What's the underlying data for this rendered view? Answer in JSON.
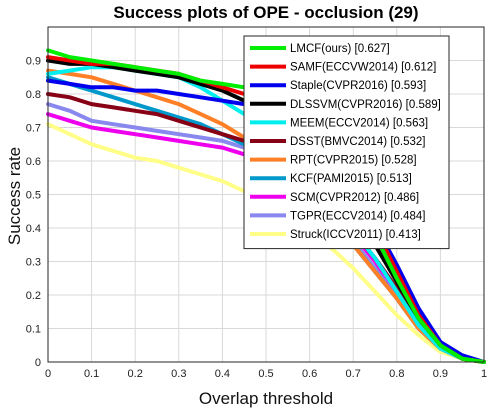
{
  "chart_data": {
    "type": "line",
    "title": "Success plots of OPE - occlusion (29)",
    "xlabel": "Overlap threshold",
    "ylabel": "Success rate",
    "xlim": [
      0,
      1
    ],
    "ylim": [
      0,
      1
    ],
    "xticks": [
      "0",
      "0.1",
      "0.2",
      "0.3",
      "0.4",
      "0.5",
      "0.6",
      "0.7",
      "0.8",
      "0.9",
      "1"
    ],
    "yticks": [
      "0",
      "0.1",
      "0.2",
      "0.3",
      "0.4",
      "0.5",
      "0.6",
      "0.7",
      "0.8",
      "0.9"
    ],
    "grid": true,
    "legend_position": "top-right",
    "x": [
      0,
      0.05,
      0.1,
      0.15,
      0.2,
      0.25,
      0.3,
      0.35,
      0.4,
      0.45,
      0.5,
      0.55,
      0.6,
      0.65,
      0.7,
      0.75,
      0.8,
      0.85,
      0.9,
      0.95,
      1
    ],
    "series": [
      {
        "name": "LMCF(ours) [0.627]",
        "color": "#00ee00",
        "values": [
          0.93,
          0.91,
          0.9,
          0.89,
          0.88,
          0.87,
          0.86,
          0.84,
          0.83,
          0.82,
          0.79,
          0.75,
          0.69,
          0.6,
          0.5,
          0.38,
          0.25,
          0.13,
          0.05,
          0.01,
          0.0
        ]
      },
      {
        "name": "SAMF(ECCVW2014) [0.612]",
        "color": "#ee0000",
        "values": [
          0.91,
          0.9,
          0.89,
          0.89,
          0.88,
          0.87,
          0.86,
          0.84,
          0.82,
          0.8,
          0.77,
          0.73,
          0.67,
          0.59,
          0.5,
          0.4,
          0.27,
          0.14,
          0.05,
          0.01,
          0.0
        ]
      },
      {
        "name": "Staple(CVPR2016) [0.593]",
        "color": "#0000ee",
        "values": [
          0.84,
          0.83,
          0.82,
          0.82,
          0.81,
          0.81,
          0.8,
          0.79,
          0.78,
          0.77,
          0.75,
          0.71,
          0.66,
          0.59,
          0.5,
          0.41,
          0.29,
          0.16,
          0.06,
          0.02,
          0.0
        ]
      },
      {
        "name": "DLSSVM(CVPR2016) [0.589]",
        "color": "#000000",
        "values": [
          0.9,
          0.89,
          0.89,
          0.88,
          0.87,
          0.86,
          0.85,
          0.83,
          0.81,
          0.78,
          0.74,
          0.69,
          0.62,
          0.53,
          0.44,
          0.35,
          0.24,
          0.13,
          0.05,
          0.01,
          0.0
        ]
      },
      {
        "name": "MEEM(ECCV2014) [0.563]",
        "color": "#00eeee",
        "values": [
          0.86,
          0.87,
          0.88,
          0.88,
          0.87,
          0.86,
          0.85,
          0.82,
          0.78,
          0.74,
          0.69,
          0.63,
          0.56,
          0.48,
          0.39,
          0.31,
          0.21,
          0.11,
          0.04,
          0.01,
          0.0
        ]
      },
      {
        "name": "DSST(BMVC2014) [0.532]",
        "color": "#880015",
        "values": [
          0.8,
          0.79,
          0.77,
          0.76,
          0.75,
          0.74,
          0.72,
          0.7,
          0.68,
          0.66,
          0.63,
          0.59,
          0.54,
          0.47,
          0.39,
          0.31,
          0.22,
          0.12,
          0.05,
          0.01,
          0.0
        ]
      },
      {
        "name": "RPT(CVPR2015) [0.528]",
        "color": "#ff7f27",
        "values": [
          0.87,
          0.86,
          0.85,
          0.83,
          0.81,
          0.79,
          0.77,
          0.74,
          0.71,
          0.67,
          0.62,
          0.56,
          0.49,
          0.42,
          0.35,
          0.27,
          0.19,
          0.1,
          0.04,
          0.01,
          0.0
        ]
      },
      {
        "name": "KCF(PAMI2015) [0.513]",
        "color": "#0099cc",
        "values": [
          0.85,
          0.83,
          0.81,
          0.79,
          0.77,
          0.75,
          0.73,
          0.71,
          0.68,
          0.65,
          0.61,
          0.56,
          0.5,
          0.43,
          0.35,
          0.27,
          0.19,
          0.1,
          0.04,
          0.01,
          0.0
        ]
      },
      {
        "name": "SCM(CVPR2012) [0.486]",
        "color": "#ee00ee",
        "values": [
          0.74,
          0.72,
          0.7,
          0.69,
          0.68,
          0.67,
          0.66,
          0.65,
          0.64,
          0.62,
          0.6,
          0.57,
          0.52,
          0.46,
          0.38,
          0.3,
          0.21,
          0.11,
          0.04,
          0.01,
          0.0
        ]
      },
      {
        "name": "TGPR(ECCV2014) [0.484]",
        "color": "#8888ee",
        "values": [
          0.77,
          0.75,
          0.72,
          0.71,
          0.7,
          0.69,
          0.68,
          0.67,
          0.66,
          0.64,
          0.61,
          0.57,
          0.51,
          0.44,
          0.36,
          0.28,
          0.19,
          0.1,
          0.04,
          0.01,
          0.0
        ]
      },
      {
        "name": "Struck(ICCV2011) [0.413]",
        "color": "#ffff88",
        "values": [
          0.71,
          0.68,
          0.65,
          0.63,
          0.61,
          0.6,
          0.58,
          0.56,
          0.54,
          0.51,
          0.48,
          0.44,
          0.39,
          0.34,
          0.28,
          0.21,
          0.14,
          0.08,
          0.03,
          0.01,
          0.0
        ]
      }
    ]
  }
}
